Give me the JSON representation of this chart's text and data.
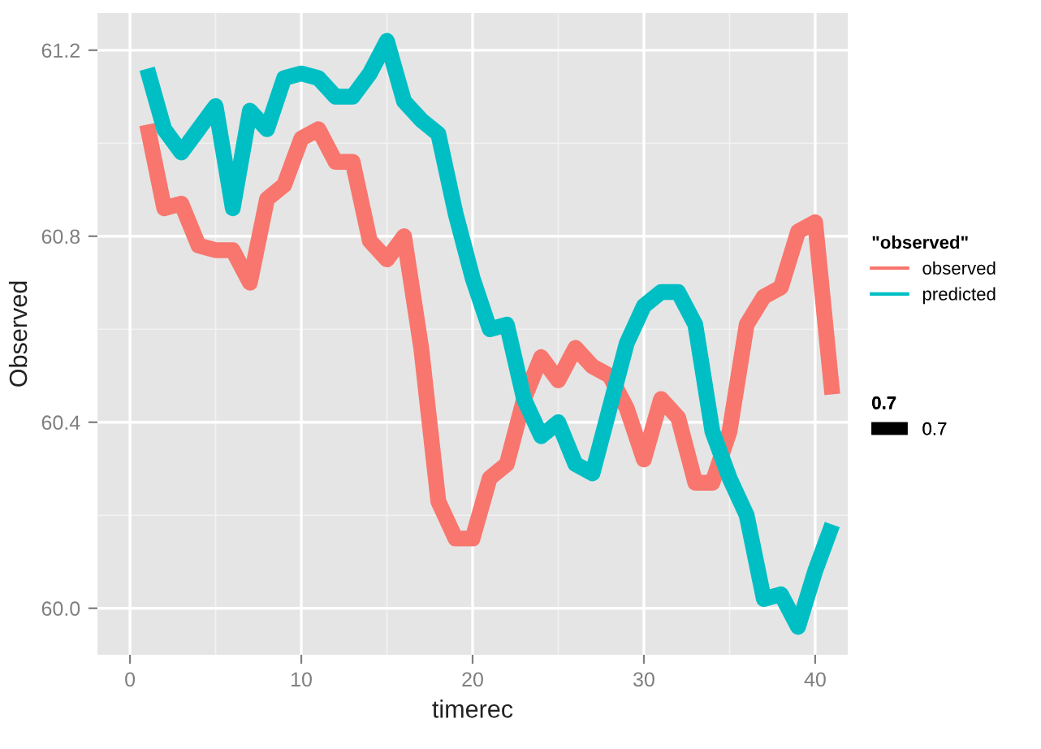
{
  "chart_data": {
    "type": "line",
    "xlabel": "timerec",
    "ylabel": "Observed",
    "legend_title": "\"observed\"",
    "x": [
      1,
      2,
      3,
      4,
      5,
      6,
      7,
      8,
      9,
      10,
      11,
      12,
      13,
      14,
      15,
      16,
      17,
      18,
      19,
      20,
      21,
      22,
      23,
      24,
      25,
      26,
      27,
      28,
      29,
      30,
      31,
      32,
      33,
      34,
      35,
      36,
      37,
      38,
      39,
      40,
      41
    ],
    "series": [
      {
        "name": "observed",
        "color": "#f8766d",
        "values": [
          61.04,
          60.86,
          60.87,
          60.78,
          60.77,
          60.77,
          60.7,
          60.88,
          60.91,
          61.01,
          61.03,
          60.96,
          60.96,
          60.79,
          60.75,
          60.8,
          60.56,
          60.23,
          60.15,
          60.15,
          60.28,
          60.31,
          60.45,
          60.54,
          60.49,
          60.56,
          60.52,
          60.5,
          60.43,
          60.32,
          60.45,
          60.41,
          60.27,
          60.27,
          60.38,
          60.61,
          60.67,
          60.69,
          60.81,
          60.83,
          60.46
        ]
      },
      {
        "name": "predicted",
        "color": "#00bfc4",
        "values": [
          61.16,
          61.03,
          60.98,
          61.03,
          61.08,
          60.86,
          61.07,
          61.03,
          61.14,
          61.15,
          61.14,
          61.1,
          61.1,
          61.15,
          61.22,
          61.09,
          61.05,
          61.02,
          60.85,
          60.71,
          60.6,
          60.61,
          60.45,
          60.37,
          60.4,
          60.31,
          60.29,
          60.43,
          60.57,
          60.65,
          60.68,
          60.68,
          60.61,
          60.38,
          60.28,
          60.2,
          60.02,
          60.03,
          59.96,
          60.08,
          60.18
        ]
      }
    ],
    "xlim": [
      -1.9,
      41.9
    ],
    "ylim": [
      59.9,
      61.28
    ],
    "xticks": [
      0,
      10,
      20,
      30,
      40
    ],
    "yticks": [
      {
        "value": 60.0,
        "label": "60.0"
      },
      {
        "value": 60.4,
        "label": "60.4"
      },
      {
        "value": 60.8,
        "label": "60.8"
      },
      {
        "value": 61.2,
        "label": "61.2"
      }
    ],
    "grid": true,
    "legend": "right",
    "line_style": "solid",
    "marker": "none",
    "annotations": [
      "0.7",
      "0.7"
    ]
  }
}
